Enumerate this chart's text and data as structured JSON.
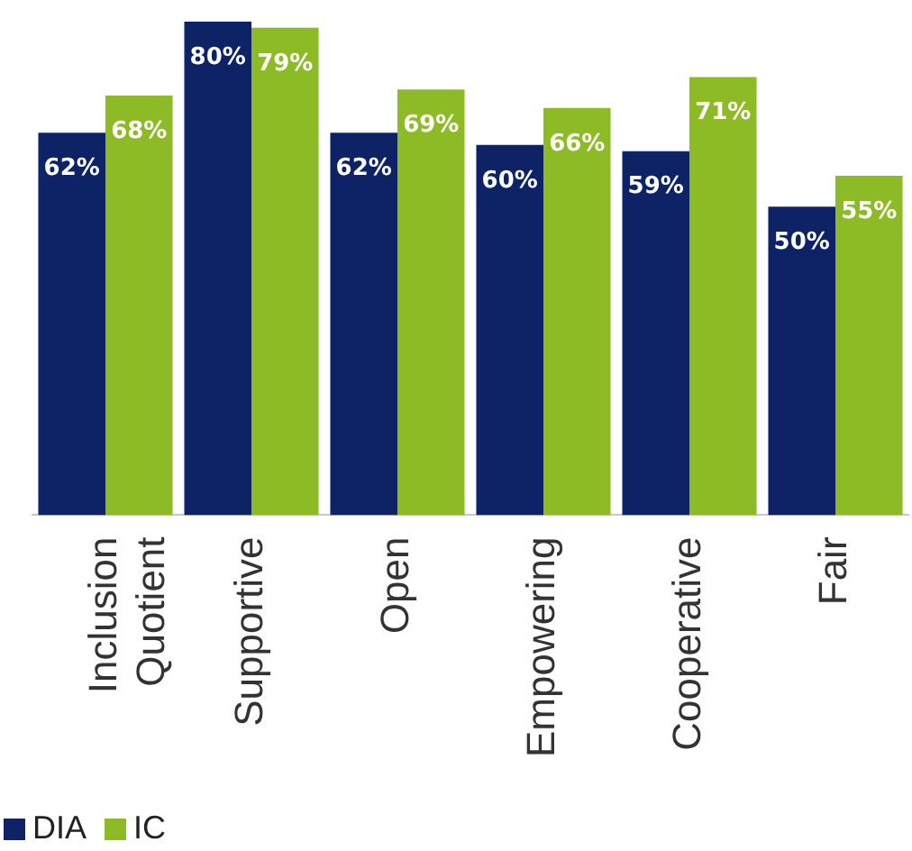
{
  "chart_data": {
    "type": "bar",
    "categories": [
      "Inclusion Quotient",
      "Supportive",
      "Open",
      "Empowering",
      "Cooperative",
      "Fair"
    ],
    "series": [
      {
        "name": "DIA",
        "color": "#0d2366",
        "values": [
          62,
          80,
          62,
          60,
          59,
          50
        ],
        "value_labels": [
          "62%",
          "80%",
          "62%",
          "60%",
          "59%",
          "50%"
        ]
      },
      {
        "name": "IC",
        "color": "#8cbb26",
        "values": [
          68,
          79,
          69,
          66,
          71,
          55
        ],
        "value_labels": [
          "68%",
          "79%",
          "69%",
          "66%",
          "71%",
          "55%"
        ]
      }
    ],
    "legend": "bottom left"
  }
}
